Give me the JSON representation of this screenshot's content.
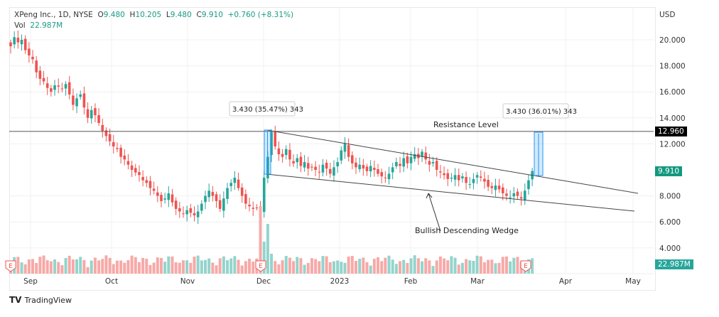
{
  "header": {
    "name": "XPeng Inc., 1D, NYSE",
    "o_label": "O",
    "open": "9.480",
    "h_label": "H",
    "high": "10.205",
    "l_label": "L",
    "low": "9.480",
    "c_label": "C",
    "close": "9.910",
    "change": "+0.760 (+8.31%)",
    "vol_label": "Vol",
    "volume": "22.987M"
  },
  "brand": "TradingView",
  "colors": {
    "up": "#26a69a",
    "down": "#ef5350",
    "vol_up": "#93d4cc",
    "vol_down": "#f7a9a7"
  },
  "chart_data": {
    "type": "candlestick",
    "currency": "USD",
    "y_ticks": [
      "20.000",
      "18.000",
      "16.000",
      "14.000",
      "12.000",
      "8.000",
      "6.000",
      "4.000"
    ],
    "y_tick_values": [
      20,
      18,
      16,
      14,
      12,
      8,
      6,
      4
    ],
    "x_ticks": [
      "Sep",
      "Oct",
      "Nov",
      "Dec",
      "2023",
      "Feb",
      "Mar",
      "Apr",
      "May"
    ],
    "last_price": "9.910",
    "last_volume": "22.987M",
    "resistance": {
      "value": 12.96,
      "label": "12.960",
      "text": "Resistance Level"
    },
    "measure_labels": [
      "3.430 (35.47%) 343",
      "3.430 (36.01%) 343"
    ],
    "annotation": "Bullish Descending Wedge",
    "closes": [
      19.5,
      20.2,
      19.8,
      20.0,
      19.2,
      18.8,
      18.5,
      17.5,
      17.0,
      16.8,
      16.3,
      16.0,
      16.5,
      16.4,
      16.2,
      16.6,
      15.8,
      15.0,
      15.5,
      15.8,
      14.8,
      14.0,
      14.6,
      14.2,
      13.6,
      13.0,
      12.6,
      12.2,
      11.8,
      11.6,
      11.0,
      10.8,
      10.4,
      10.0,
      9.8,
      9.6,
      9.2,
      9.0,
      8.6,
      8.4,
      8.0,
      7.6,
      7.8,
      8.2,
      7.5,
      7.0,
      6.8,
      6.6,
      6.9,
      6.7,
      6.5,
      6.8,
      7.4,
      8.0,
      8.4,
      8.0,
      7.6,
      7.0,
      7.8,
      8.6,
      9.0,
      9.4,
      8.6,
      8.0,
      7.4,
      7.2,
      7.0,
      7.1,
      6.9,
      9.4,
      11.0,
      12.9,
      11.8,
      11.2,
      11.0,
      11.6,
      10.8,
      10.5,
      10.9,
      10.3,
      10.6,
      10.1,
      10.2,
      10.0,
      9.8,
      10.4,
      10.1,
      9.7,
      10.2,
      10.6,
      11.5,
      12.0,
      11.0,
      10.5,
      10.2,
      10.4,
      10.1,
      9.9,
      10.3,
      10.0,
      9.7,
      9.5,
      9.4,
      9.7,
      10.2,
      10.6,
      10.3,
      10.9,
      10.5,
      11.0,
      11.2,
      10.9,
      11.4,
      10.8,
      10.4,
      10.6,
      10.0,
      9.8,
      9.6,
      9.3,
      9.4,
      9.6,
      9.2,
      9.5,
      9.0,
      8.9,
      9.3,
      9.6,
      9.4,
      9.1,
      8.7,
      8.6,
      8.8,
      8.5,
      8.2,
      8.0,
      7.9,
      8.2,
      8.0,
      7.8,
      8.4,
      9.2,
      9.91
    ],
    "earnings_marker": "E"
  }
}
